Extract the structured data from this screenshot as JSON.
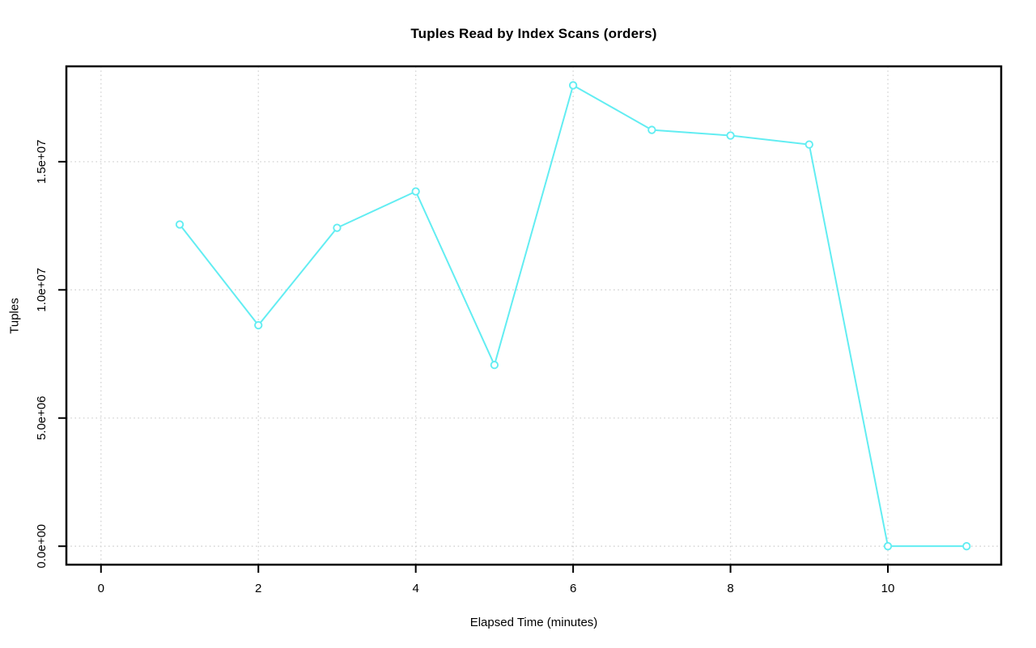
{
  "chart_data": {
    "type": "line",
    "title": "Tuples Read by Index Scans (orders)",
    "xlabel": "Elapsed Time (minutes)",
    "ylabel": "Tuples",
    "x": [
      1,
      2,
      3,
      4,
      5,
      6,
      7,
      8,
      9,
      10,
      11
    ],
    "values": [
      12550000,
      8620000,
      12420000,
      13840000,
      7070000,
      17980000,
      16240000,
      16020000,
      15670000,
      0,
      0
    ],
    "xlim": [
      -0.44,
      11.44
    ],
    "ylim": [
      -720000,
      18720000
    ],
    "xticks": {
      "values": [
        0,
        2,
        4,
        6,
        8,
        10
      ],
      "labels": [
        "0",
        "2",
        "4",
        "6",
        "8",
        "10"
      ]
    },
    "yticks": {
      "values": [
        0,
        5000000,
        10000000,
        15000000
      ],
      "labels": [
        "0.0e+00",
        "5.0e+06",
        "1.0e+07",
        "1.5e+07"
      ]
    },
    "grid": {
      "show": true,
      "style": "dotted",
      "color": "#d2d2d2"
    },
    "legend": "none",
    "colors": {
      "series": "#62edf2",
      "marker_fill": "#ffffff",
      "axis": "#000000",
      "text": "#000000",
      "background": "#ffffff"
    },
    "style": {
      "line_width": 2,
      "marker": "open-circle",
      "marker_radius": 4.2,
      "y_tick_labels_rotated": true
    }
  }
}
